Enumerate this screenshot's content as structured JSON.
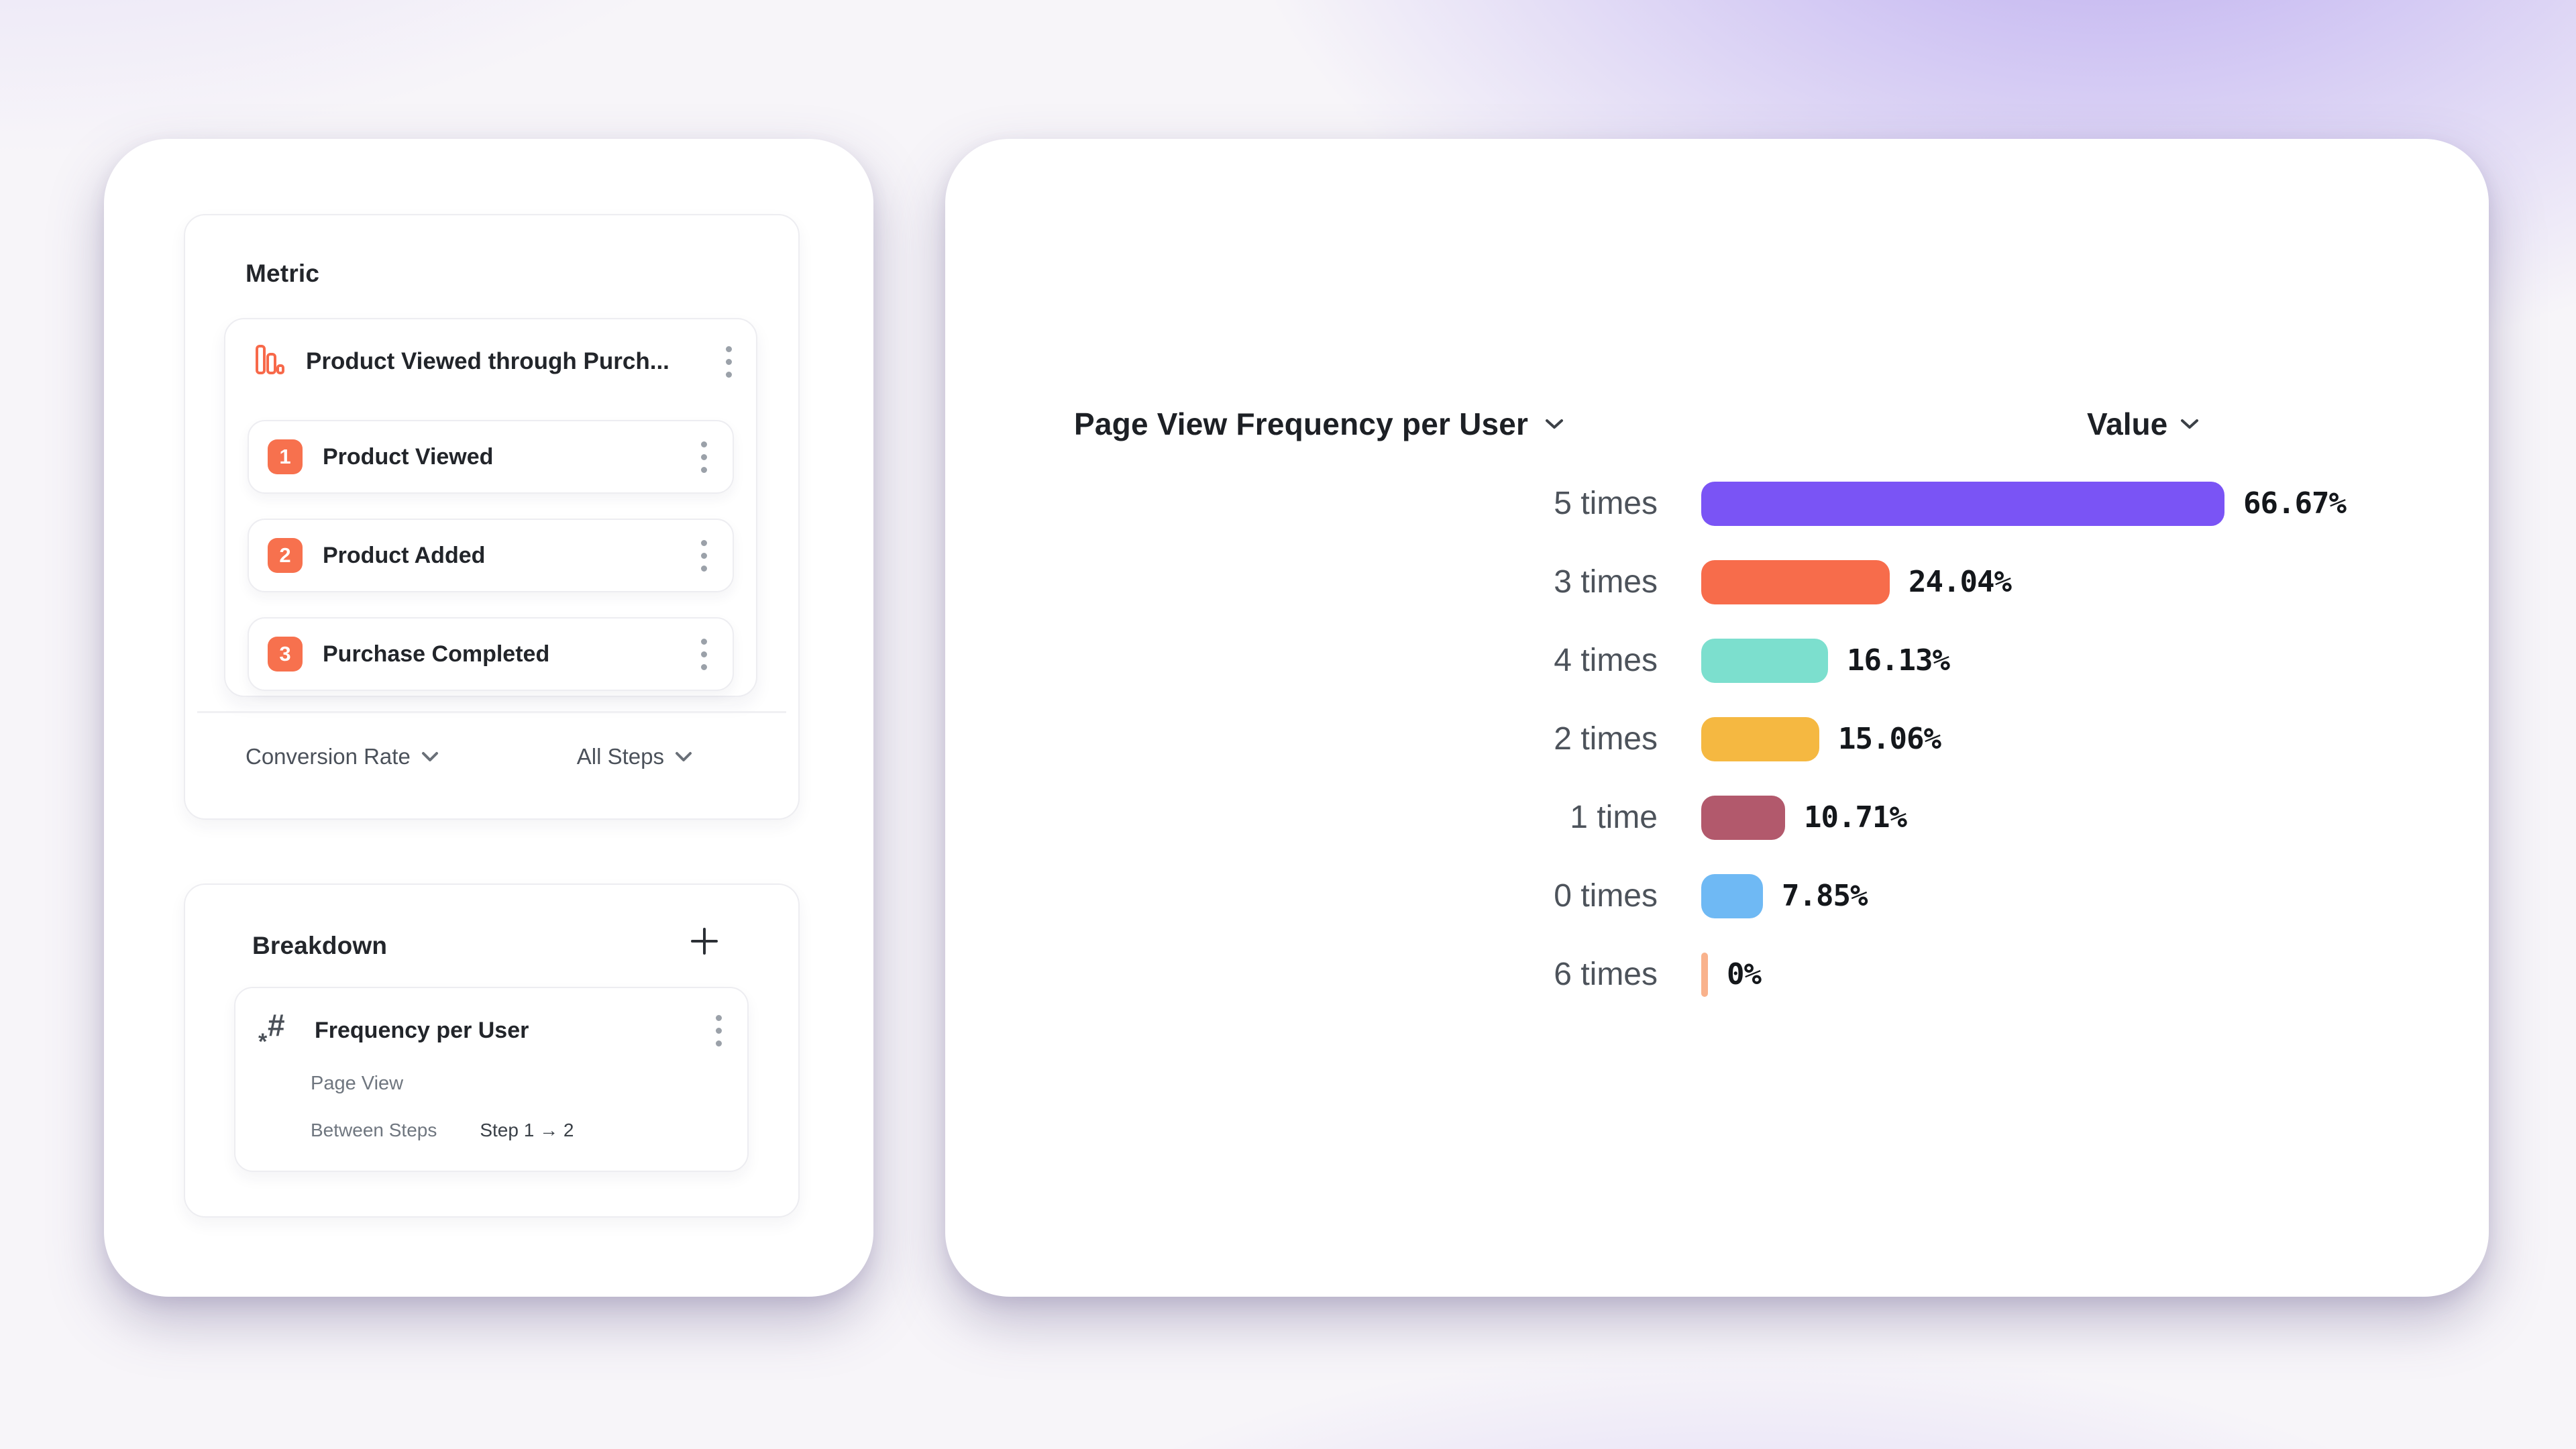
{
  "metric_panel": {
    "title": "Metric",
    "funnel": {
      "icon": "bar-chart-icon",
      "title": "Product Viewed through Purch...",
      "steps": [
        {
          "number": "1",
          "label": "Product Viewed"
        },
        {
          "number": "2",
          "label": "Product Added"
        },
        {
          "number": "3",
          "label": "Purchase Completed"
        }
      ]
    },
    "conversion_dropdown_label": "Conversion Rate",
    "steps_dropdown_label": "All Steps"
  },
  "breakdown_panel": {
    "title": "Breakdown",
    "add_label": "+",
    "item": {
      "icon": "hash-icon",
      "title": "Frequency per User",
      "event": "Page View",
      "between_label": "Between Steps",
      "step_range": "Step 1 → 2"
    }
  },
  "chart": {
    "title": "Page View Frequency per User",
    "value_header": "Value"
  },
  "chart_data": {
    "type": "bar",
    "orientation": "horizontal",
    "title": "Page View Frequency per User",
    "value_column": "Value",
    "categories": [
      "5 times",
      "3 times",
      "4 times",
      "2 times",
      "1 time",
      "0 times",
      "6 times"
    ],
    "values": [
      66.67,
      24.04,
      16.13,
      15.06,
      10.71,
      7.85,
      0
    ],
    "rows": [
      {
        "category": "5 times",
        "value": 66.67,
        "label": "66.67%",
        "color": "#7A54F5"
      },
      {
        "category": "3 times",
        "value": 24.04,
        "label": "24.04%",
        "color": "#F76C4B"
      },
      {
        "category": "4 times",
        "value": 16.13,
        "label": "16.13%",
        "color": "#7CDFCE"
      },
      {
        "category": "2 times",
        "value": 15.06,
        "label": "15.06%",
        "color": "#F5B841"
      },
      {
        "category": "1 time",
        "value": 10.71,
        "label": "10.71%",
        "color": "#B2596C"
      },
      {
        "category": "0 times",
        "value": 7.85,
        "label": "7.85%",
        "color": "#6FB9F4"
      },
      {
        "category": "6 times",
        "value": 0,
        "label": "0%",
        "color": "#F9B28C"
      }
    ],
    "xlim": [
      0,
      66.67
    ],
    "grid": false,
    "legend": false
  },
  "colors": {
    "accent_orange": "#F7714E",
    "bar_purple": "#7A54F5",
    "bar_coral": "#F76C4B",
    "bar_teal": "#7CDFCE",
    "bar_amber": "#F5B841",
    "bar_rose": "#B2596C",
    "bar_blue": "#6FB9F4",
    "bar_peach": "#F9B28C",
    "background_purple": "#B5A3F0"
  }
}
